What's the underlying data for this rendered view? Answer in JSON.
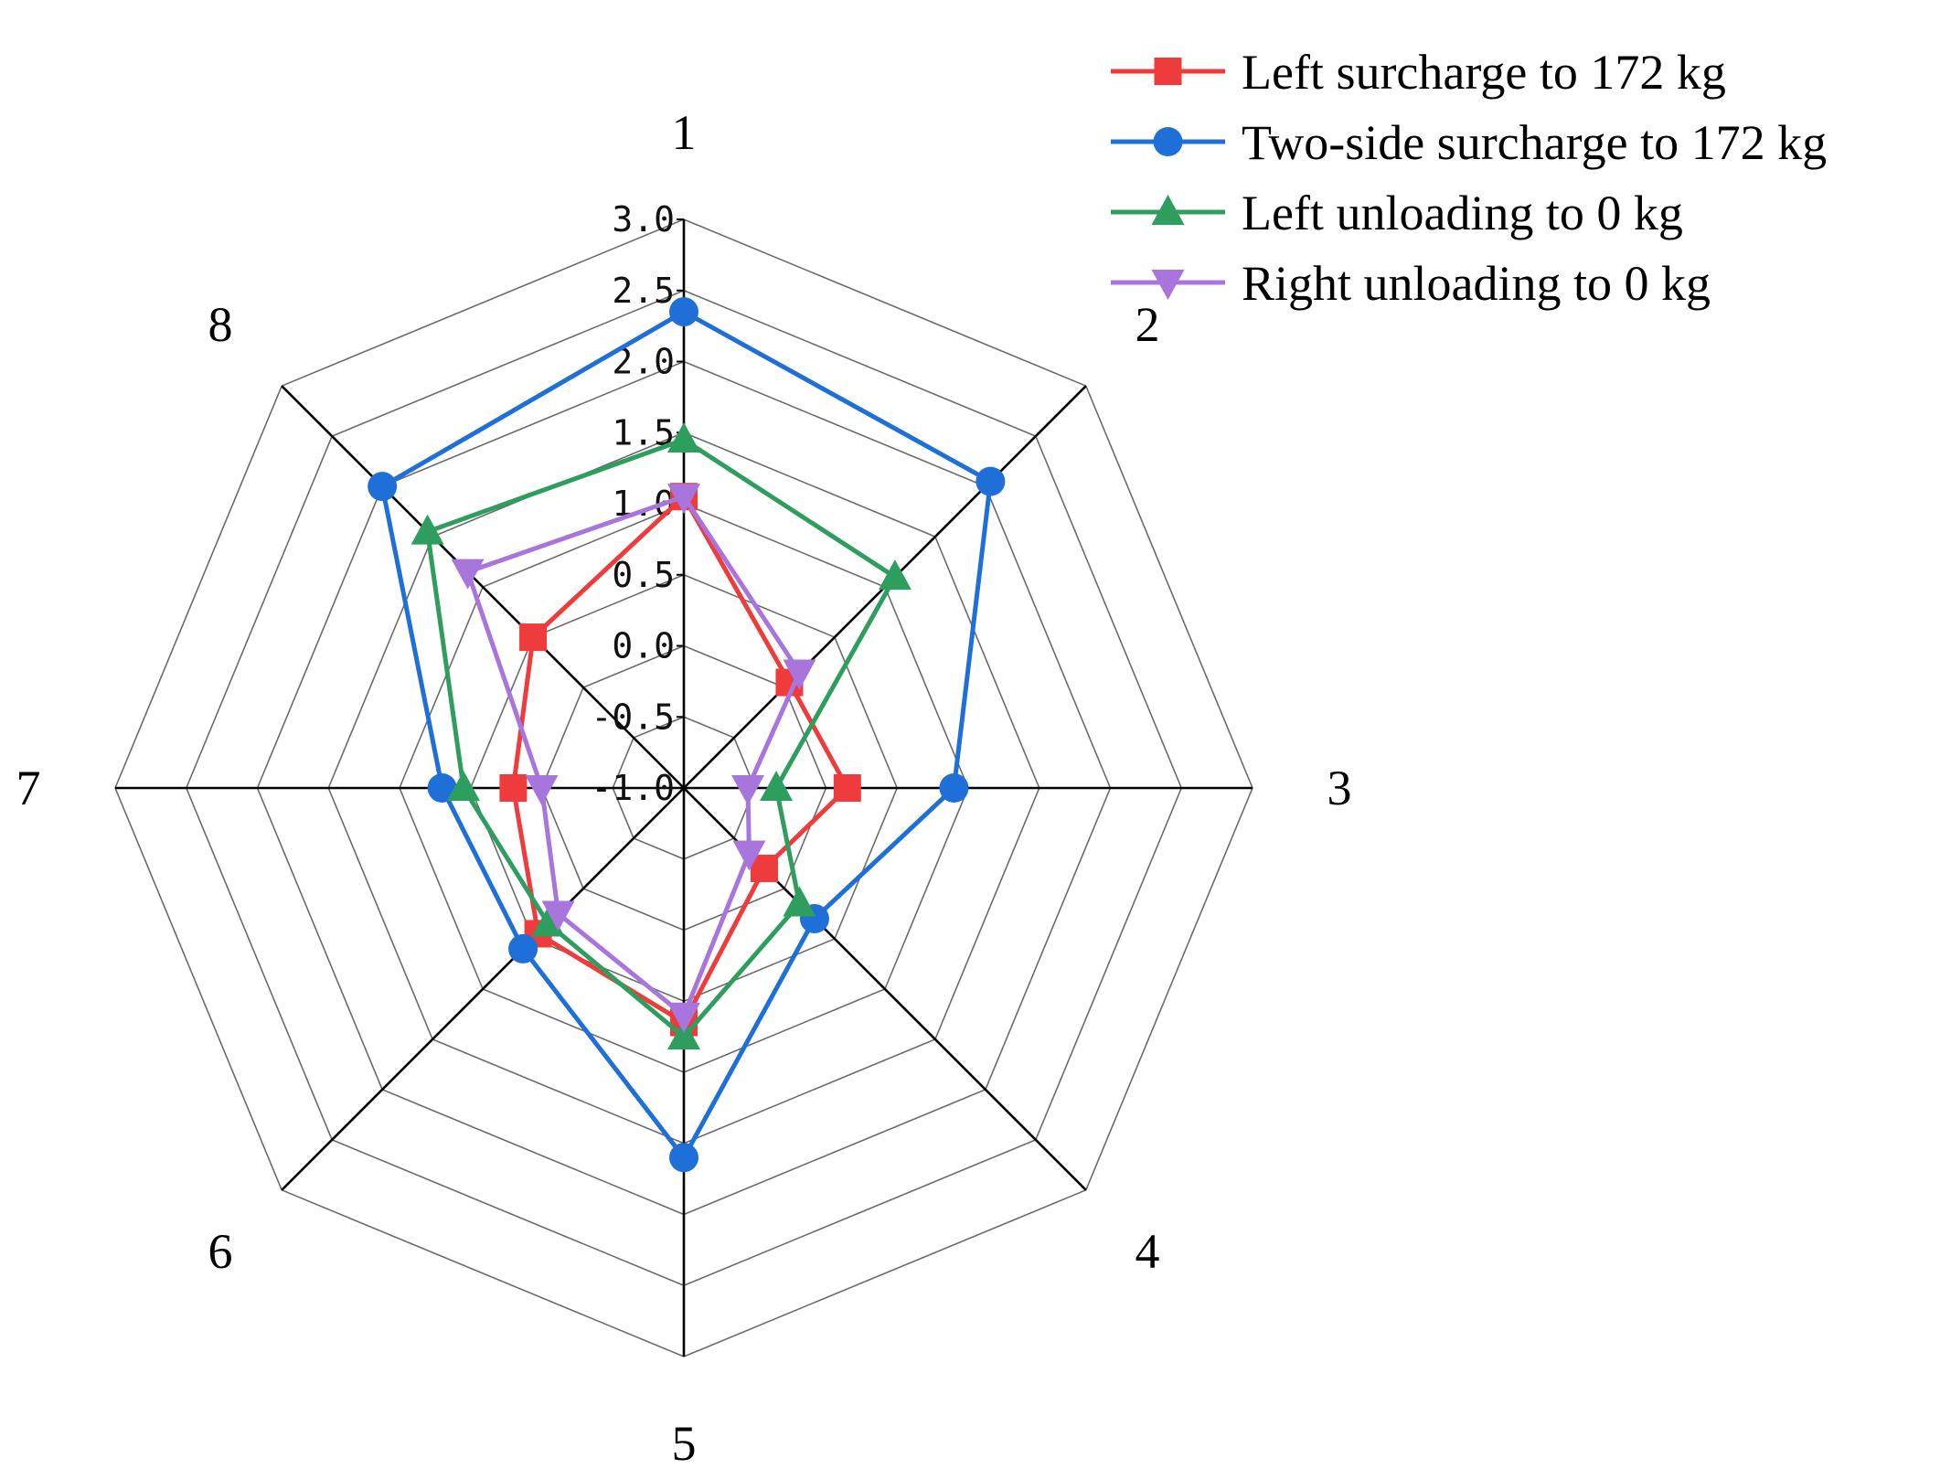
{
  "chart_data": {
    "type": "radar",
    "categories": [
      "1",
      "2",
      "3",
      "4",
      "5",
      "6",
      "7",
      "8"
    ],
    "rlim": [
      -1.0,
      3.0
    ],
    "rticks": [
      "-1.0",
      "-0.5",
      "0.0",
      "0.5",
      "1.0",
      "1.5",
      "2.0",
      "2.5",
      "3.0"
    ],
    "grid": true,
    "legend": "top-right",
    "series": [
      {
        "name": "Left surcharge to 172 kg",
        "color": "#ef3b3b",
        "marker": "square",
        "values": [
          1.05,
          0.05,
          0.15,
          -0.2,
          0.65,
          0.45,
          0.2,
          0.5
        ]
      },
      {
        "name": "Two-side surcharge to 172 kg",
        "color": "#1f6fd9",
        "marker": "circle",
        "values": [
          2.35,
          2.05,
          0.9,
          0.3,
          1.6,
          0.6,
          0.7,
          2.0
        ]
      },
      {
        "name": "Left unloading to 0 kg",
        "color": "#2e9e5f",
        "marker": "triangle-up",
        "values": [
          1.45,
          1.1,
          -0.35,
          0.15,
          0.75,
          0.35,
          0.55,
          1.55
        ]
      },
      {
        "name": "Right unloading to 0 kg",
        "color": "#a875dc",
        "marker": "triangle-down",
        "values": [
          1.05,
          0.15,
          -0.55,
          -0.35,
          0.6,
          0.25,
          0.0,
          1.15
        ]
      }
    ]
  }
}
